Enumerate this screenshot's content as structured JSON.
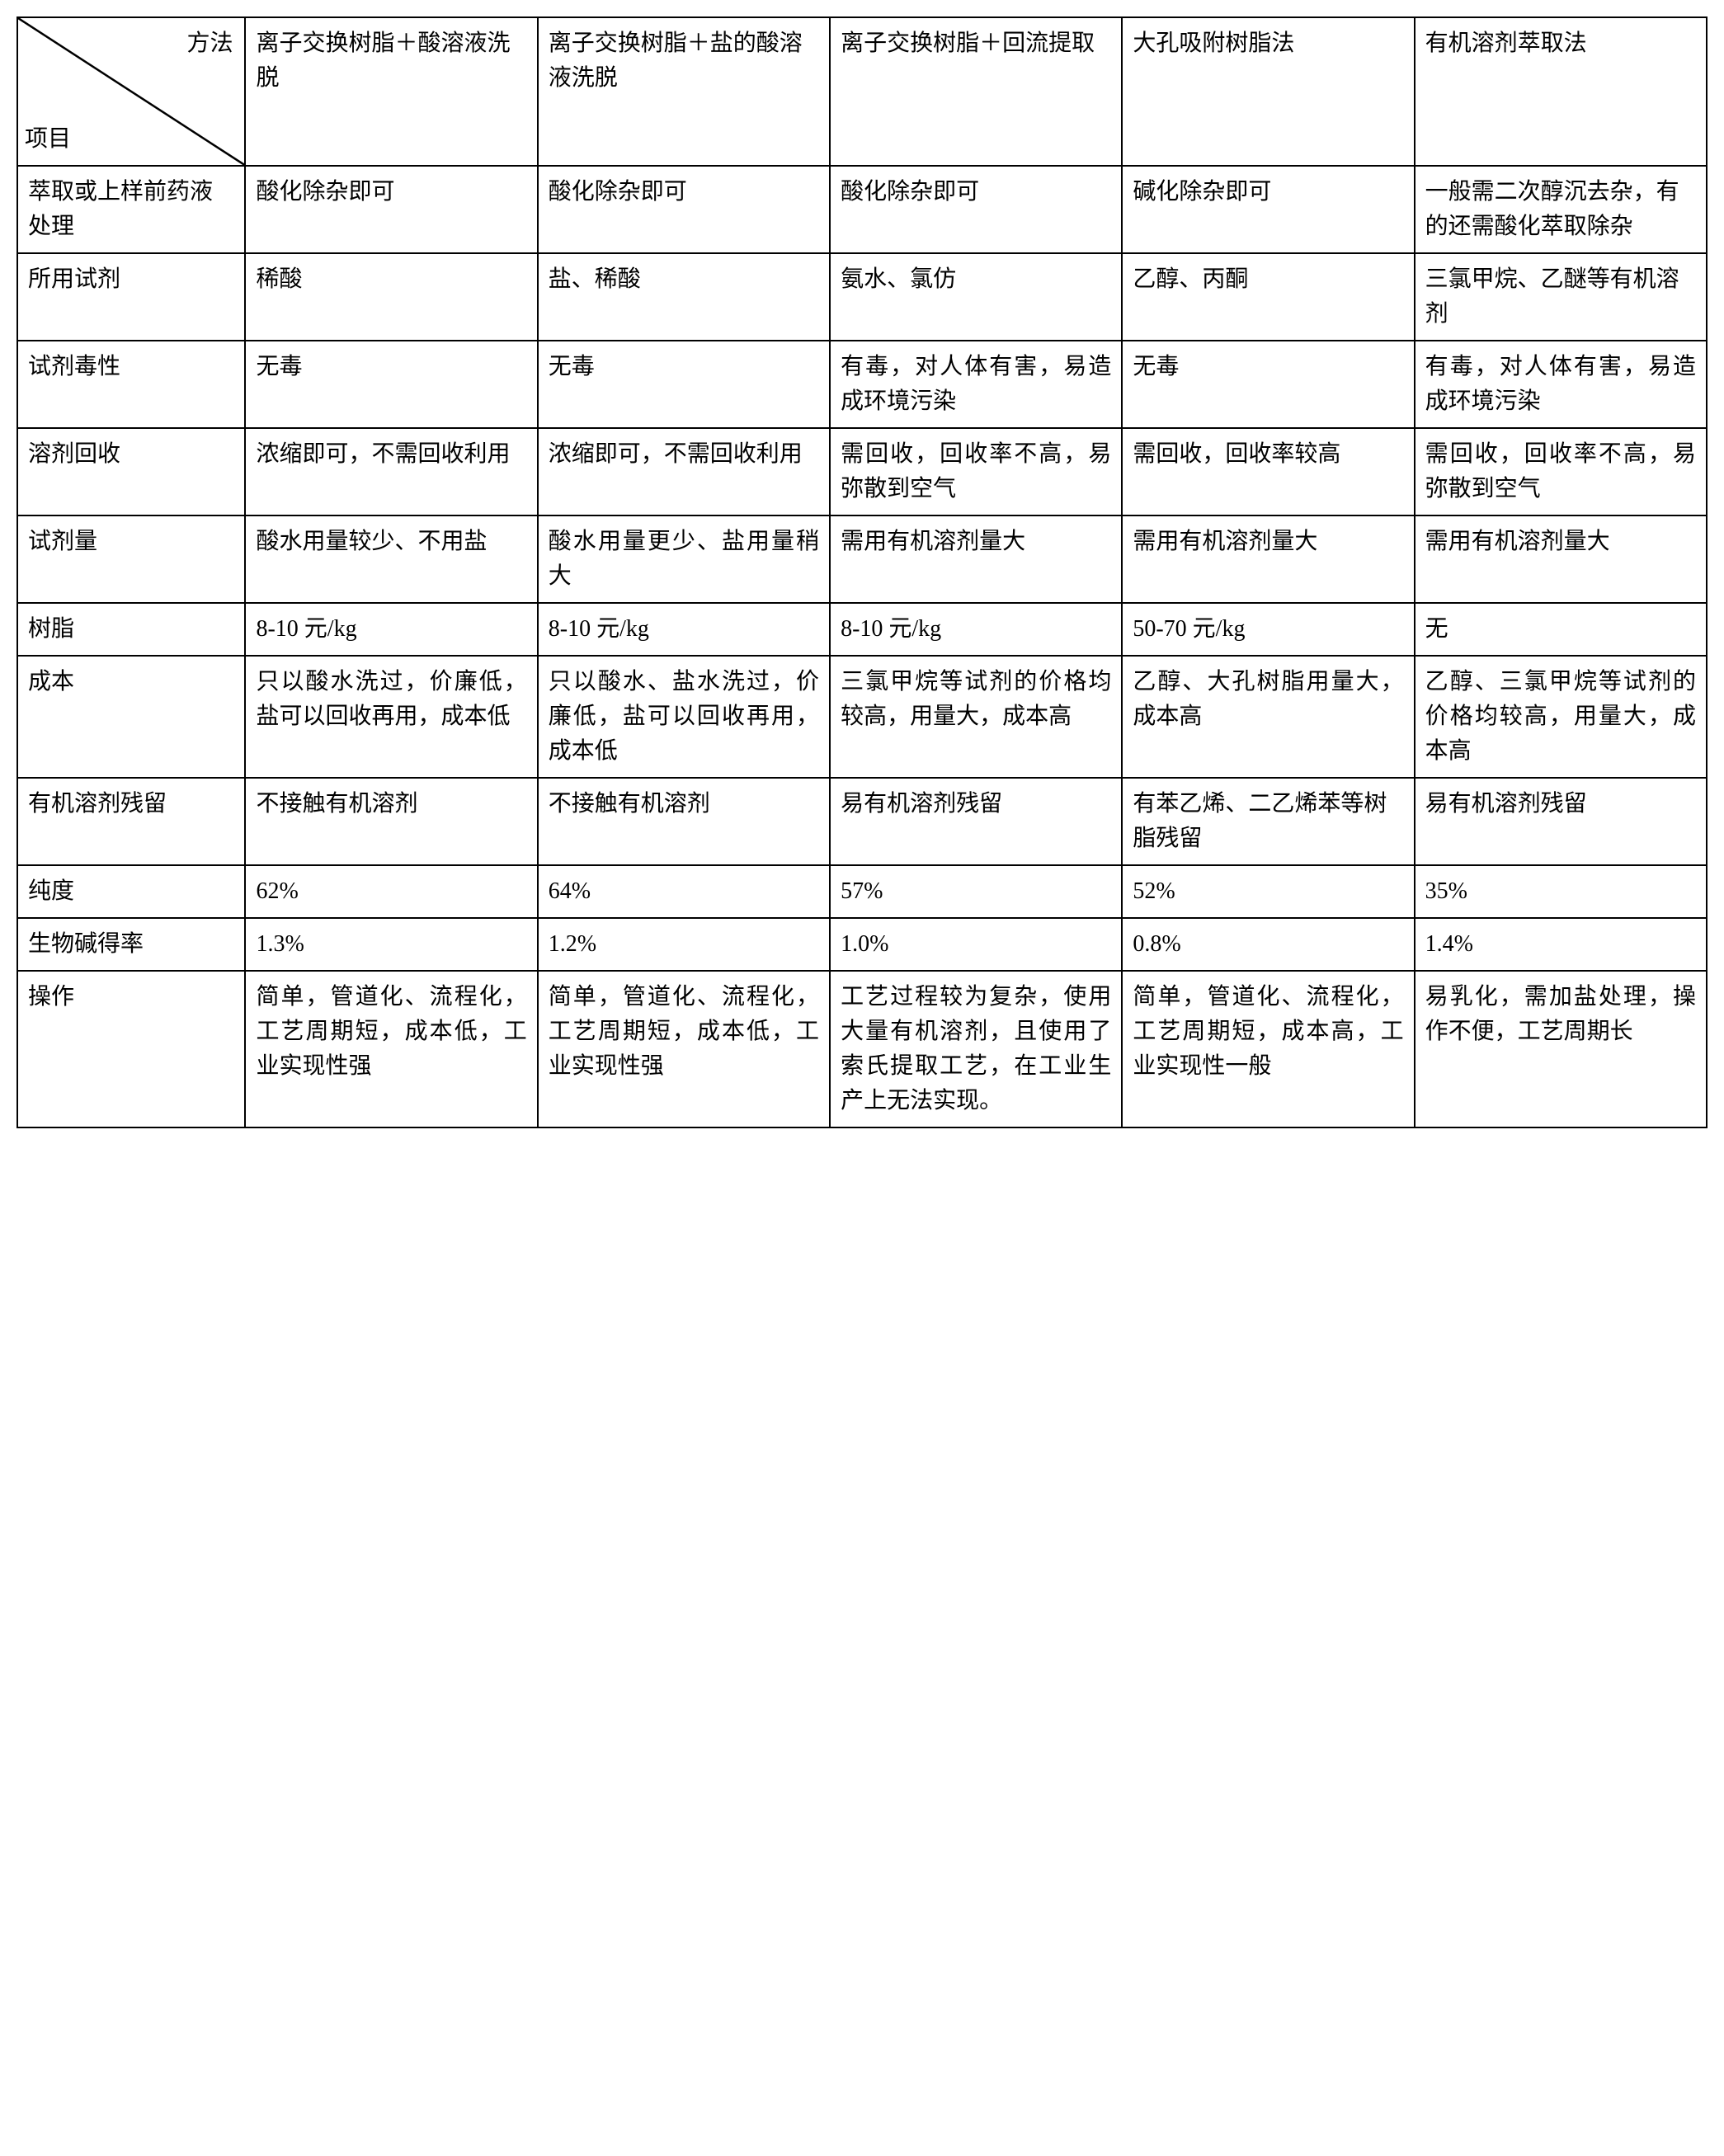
{
  "table": {
    "border_color": "#000000",
    "background_color": "#ffffff",
    "fontsize": 28,
    "line_height": 1.5,
    "column_widths_pct": [
      13.5,
      17.3,
      17.3,
      17.3,
      17.3,
      17.3
    ],
    "header": {
      "diag_top": "方法",
      "diag_bottom": "项目",
      "methods": [
        "离子交换树脂＋酸溶液洗脱",
        "离子交换树脂＋盐的酸溶液洗脱",
        "离子交换树脂＋回流提取",
        "大孔吸附树脂法",
        "有机溶剂萃取法"
      ]
    },
    "rows": [
      {
        "label": "萃取或上样前药液处理",
        "cells": [
          "酸化除杂即可",
          "酸化除杂即可",
          "酸化除杂即可",
          "碱化除杂即可",
          "一般需二次醇沉去杂，有的还需酸化萃取除杂"
        ]
      },
      {
        "label": "所用试剂",
        "cells": [
          "稀酸",
          "盐、稀酸",
          "氨水、氯仿",
          "乙醇、丙酮",
          "三氯甲烷、乙醚等有机溶剂"
        ]
      },
      {
        "label": "试剂毒性",
        "cells": [
          "无毒",
          "无毒",
          "有毒，对人体有害，易造成环境污染",
          "无毒",
          "有毒，对人体有害，易造成环境污染"
        ],
        "justify": [
          false,
          false,
          true,
          false,
          true
        ]
      },
      {
        "label": "溶剂回收",
        "cells": [
          "浓缩即可，不需回收利用",
          "浓缩即可，不需回收利用",
          "需回收，回收率不高，易弥散到空气",
          "需回收，回收率较高",
          "需回收，回收率不高，易弥散到空气"
        ],
        "justify": [
          true,
          true,
          true,
          true,
          true
        ]
      },
      {
        "label": "试剂量",
        "cells": [
          "酸水用量较少、不用盐",
          "酸水用量更少、盐用量稍大",
          "需用有机溶剂量大",
          "需用有机溶剂量大",
          "需用有机溶剂量大"
        ],
        "justify": [
          true,
          true,
          false,
          false,
          false
        ]
      },
      {
        "label": "树脂",
        "cells": [
          "8-10 元/kg",
          "8-10 元/kg",
          "8-10 元/kg",
          "50-70 元/kg",
          "无"
        ]
      },
      {
        "label": "成本",
        "cells": [
          "只以酸水洗过，价廉低，盐可以回收再用，成本低",
          "只以酸水、盐水洗过，价廉低，盐可以回收再用，成本低",
          "三氯甲烷等试剂的价格均较高，用量大，成本高",
          "乙醇、大孔树脂用量大，成本高",
          "乙醇、三氯甲烷等试剂的价格均较高，用量大，成本高"
        ],
        "justify": [
          true,
          true,
          true,
          true,
          true
        ]
      },
      {
        "label": "有机溶剂残留",
        "cells": [
          "不接触有机溶剂",
          "不接触有机溶剂",
          "易有机溶剂残留",
          "有苯乙烯、二乙烯苯等树脂残留",
          "易有机溶剂残留"
        ]
      },
      {
        "label": "纯度",
        "cells": [
          "62%",
          "64%",
          "57%",
          "52%",
          "35%"
        ]
      },
      {
        "label": "生物碱得率",
        "cells": [
          "1.3%",
          "1.2%",
          "1.0%",
          "0.8%",
          "1.4%"
        ]
      },
      {
        "label": "操作",
        "cells": [
          "简单，管道化、流程化，工艺周期短，成本低，工业实现性强",
          "简单，管道化、流程化，工艺周期短，成本低，工业实现性强",
          "工艺过程较为复杂，使用大量有机溶剂，且使用了索氏提取工艺，在工业生产上无法实现。",
          "简单，管道化、流程化，工艺周期短，成本高，工业实现性一般",
          "易乳化，需加盐处理，操作不便，工艺周期长"
        ],
        "justify": [
          true,
          true,
          true,
          true,
          true
        ]
      }
    ]
  }
}
